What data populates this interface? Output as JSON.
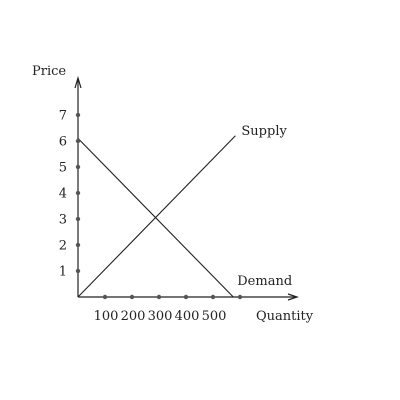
{
  "chart_data": {
    "type": "line",
    "title": "",
    "xlabel": "Quantity",
    "ylabel": "Price",
    "xlim": [
      0,
      600
    ],
    "ylim": [
      0,
      7.8
    ],
    "x_ticks": [
      100,
      200,
      300,
      400,
      500
    ],
    "x_tick_dots": [
      100,
      200,
      300,
      400,
      500,
      600
    ],
    "y_ticks": [
      1,
      2,
      3,
      4,
      5,
      6,
      7
    ],
    "grid": false,
    "series": [
      {
        "name": "Supply",
        "label": "Supply",
        "x": [
          0,
          583
        ],
        "y": [
          0,
          6.2
        ]
      },
      {
        "name": "Demand",
        "label": "Demand",
        "x": [
          0,
          575
        ],
        "y": [
          6.1,
          0
        ]
      }
    ]
  }
}
